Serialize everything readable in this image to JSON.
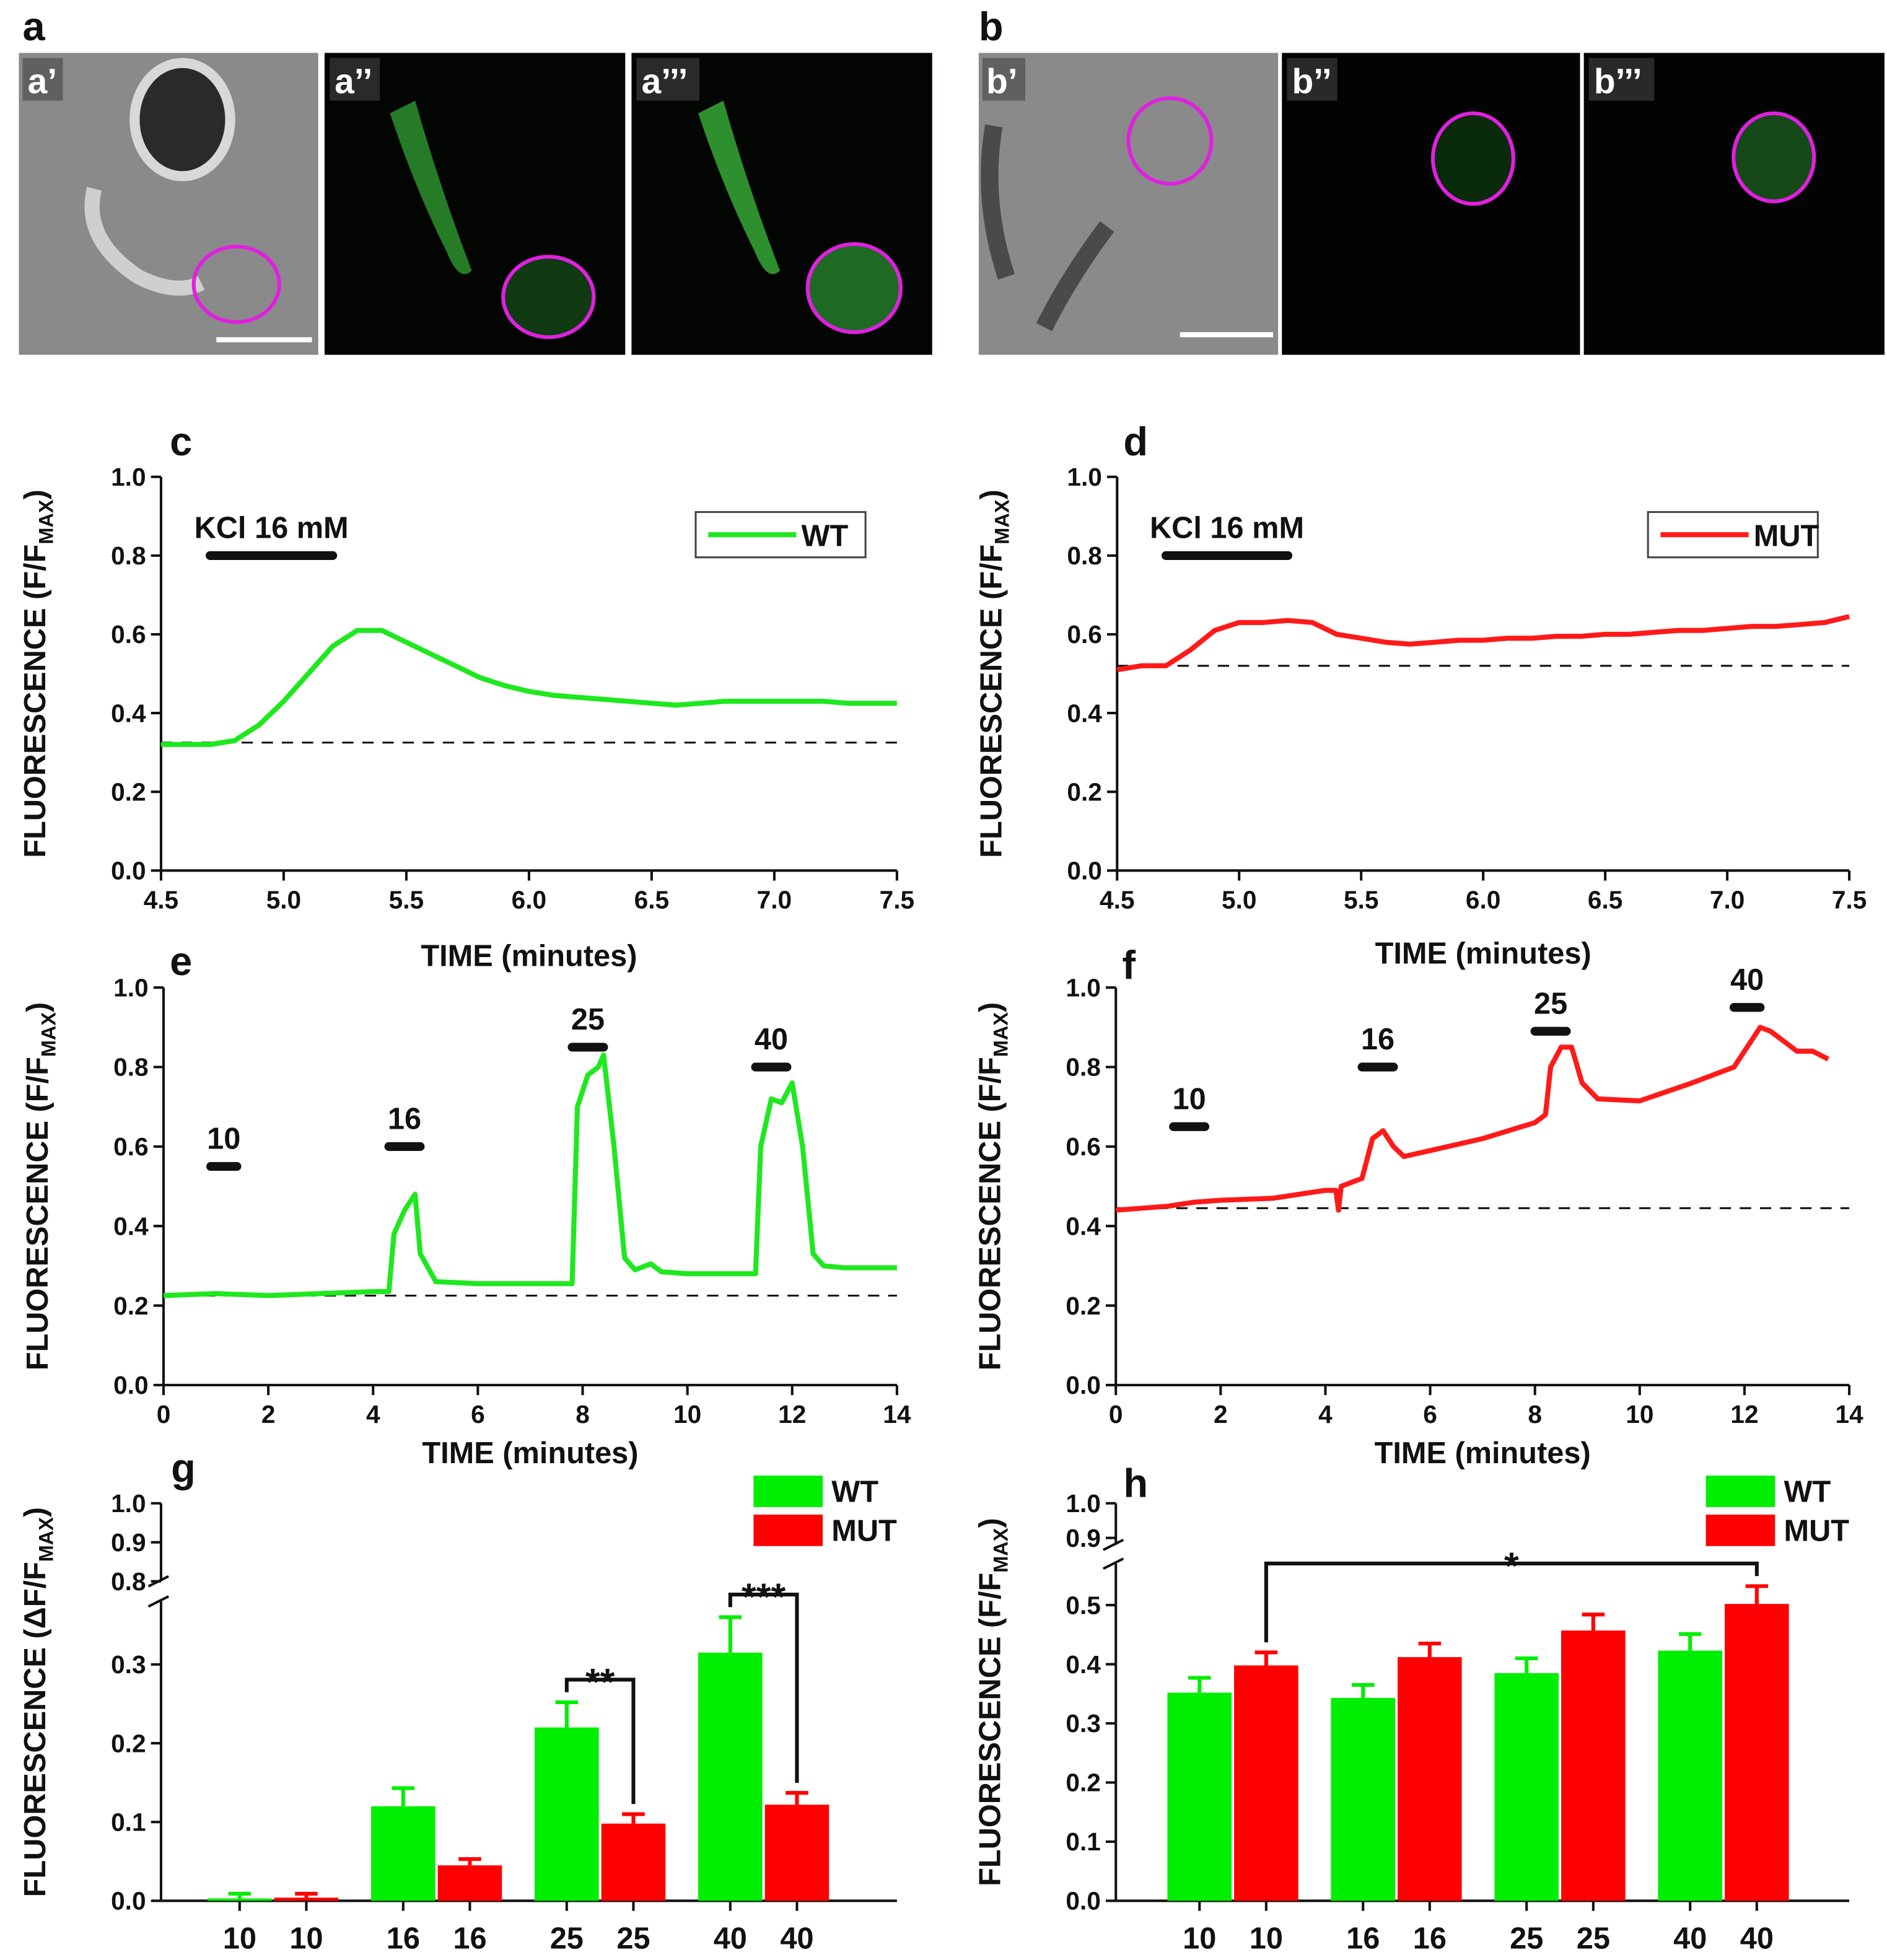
{
  "images": {
    "a": {
      "label": "a",
      "frames": [
        "a’",
        "a’’",
        "a’’’"
      ]
    },
    "b": {
      "label": "b",
      "frames": [
        "b’",
        "b’’",
        "b’’’"
      ]
    }
  },
  "chart_data": [
    {
      "type": "line",
      "label": "c",
      "xlabel": "TIME (minutes)",
      "ylabel": {
        "main": "FLUORESCENCE (F/F",
        "sub": "MAX",
        "end": ")"
      },
      "x": [
        4.5,
        4.6,
        4.7,
        4.8,
        4.9,
        5.0,
        5.1,
        5.2,
        5.3,
        5.4,
        5.5,
        5.6,
        5.7,
        5.8,
        5.9,
        6.0,
        6.1,
        6.2,
        6.3,
        6.4,
        6.5,
        6.6,
        6.7,
        6.8,
        6.9,
        7.0,
        7.1,
        7.2,
        7.3,
        7.4,
        7.5
      ],
      "series": [
        {
          "name": "WT",
          "color": "#1ee81e",
          "values": [
            0.32,
            0.32,
            0.32,
            0.33,
            0.37,
            0.43,
            0.5,
            0.57,
            0.61,
            0.61,
            0.58,
            0.55,
            0.52,
            0.49,
            0.47,
            0.455,
            0.445,
            0.44,
            0.435,
            0.43,
            0.425,
            0.42,
            0.425,
            0.43,
            0.43,
            0.43,
            0.43,
            0.43,
            0.425,
            0.425,
            0.425
          ]
        }
      ],
      "baseline": 0.325,
      "stimuli": [
        {
          "label": "KCl 16 mM",
          "start": 4.7,
          "end": 5.2,
          "y": 0.8
        }
      ],
      "xlim": [
        4.5,
        7.5
      ],
      "xticks": [
        4.5,
        {
          "value": 5,
          "label": "5.0"
        },
        5.5,
        {
          "value": 6,
          "label": "6.0"
        },
        6.5,
        {
          "value": 7,
          "label": "7.0"
        },
        7.5
      ],
      "ylim": [
        0,
        1
      ],
      "yticks": [
        {
          "value": 0,
          "label": "0.0"
        },
        0.2,
        0.4,
        0.6,
        0.8,
        {
          "value": 1,
          "label": "1.0"
        }
      ],
      "legend": "upper right"
    },
    {
      "type": "line",
      "label": "d",
      "xlabel": "TIME (minutes)",
      "ylabel": {
        "main": "FLUORESCENCE (F/F",
        "sub": "MAX",
        "end": ")"
      },
      "x": [
        4.5,
        4.6,
        4.7,
        4.8,
        4.9,
        5.0,
        5.1,
        5.2,
        5.3,
        5.4,
        5.5,
        5.6,
        5.7,
        5.8,
        5.9,
        6.0,
        6.1,
        6.2,
        6.3,
        6.4,
        6.5,
        6.6,
        6.7,
        6.8,
        6.9,
        7.0,
        7.1,
        7.2,
        7.3,
        7.4,
        7.5
      ],
      "series": [
        {
          "name": "MUT",
          "color": "#ff1a1a",
          "values": [
            0.51,
            0.52,
            0.52,
            0.56,
            0.61,
            0.63,
            0.63,
            0.635,
            0.63,
            0.6,
            0.59,
            0.58,
            0.575,
            0.58,
            0.585,
            0.585,
            0.59,
            0.59,
            0.595,
            0.595,
            0.6,
            0.6,
            0.605,
            0.61,
            0.61,
            0.615,
            0.62,
            0.62,
            0.625,
            0.63,
            0.645
          ]
        }
      ],
      "baseline": 0.52,
      "stimuli": [
        {
          "label": "KCl 16 mM",
          "start": 4.7,
          "end": 5.2,
          "y": 0.8
        }
      ],
      "xlim": [
        4.5,
        7.5
      ],
      "xticks": [
        4.5,
        {
          "value": 5,
          "label": "5.0"
        },
        5.5,
        {
          "value": 6,
          "label": "6.0"
        },
        6.5,
        {
          "value": 7,
          "label": "7.0"
        },
        7.5
      ],
      "ylim": [
        0,
        1
      ],
      "yticks": [
        {
          "value": 0,
          "label": "0.0"
        },
        0.2,
        0.4,
        0.6,
        0.8,
        {
          "value": 1,
          "label": "1.0"
        }
      ],
      "legend": "upper right"
    },
    {
      "type": "line",
      "label": "e",
      "xlabel": "TIME (minutes)",
      "ylabel": {
        "main": "FLUORESCENCE (F/F",
        "sub": "MAX",
        "end": ")"
      },
      "x": [
        0,
        1,
        2,
        3,
        4,
        4.3,
        4.4,
        4.6,
        4.8,
        4.9,
        5.2,
        6,
        7,
        7.8,
        7.9,
        8.1,
        8.3,
        8.4,
        8.6,
        8.8,
        9,
        9.3,
        9.5,
        10,
        11,
        11.3,
        11.4,
        11.6,
        11.8,
        12,
        12.2,
        12.4,
        12.6,
        13,
        14
      ],
      "series": [
        {
          "name": "WT",
          "color": "#1ee81e",
          "values": [
            0.225,
            0.23,
            0.225,
            0.23,
            0.235,
            0.235,
            0.38,
            0.44,
            0.48,
            0.33,
            0.26,
            0.255,
            0.255,
            0.255,
            0.7,
            0.78,
            0.8,
            0.83,
            0.6,
            0.32,
            0.29,
            0.305,
            0.285,
            0.28,
            0.28,
            0.28,
            0.6,
            0.72,
            0.71,
            0.76,
            0.6,
            0.33,
            0.3,
            0.295,
            0.295
          ]
        }
      ],
      "baseline": 0.225,
      "stimuli": [
        {
          "label": "10",
          "start": 0.9,
          "end": 1.4,
          "y": 0.55
        },
        {
          "label": "16",
          "start": 4.3,
          "end": 4.9,
          "y": 0.6
        },
        {
          "label": "25",
          "start": 7.8,
          "end": 8.4,
          "y": 0.85
        },
        {
          "label": "40",
          "start": 11.3,
          "end": 11.9,
          "y": 0.8
        }
      ],
      "xlim": [
        0,
        14
      ],
      "xticks": [
        0,
        2,
        4,
        6,
        8,
        10,
        12,
        14
      ],
      "ylim": [
        0,
        1
      ],
      "yticks": [
        {
          "value": 0,
          "label": "0.0"
        },
        0.2,
        0.4,
        0.6,
        0.8,
        {
          "value": 1,
          "label": "1.0"
        }
      ]
    },
    {
      "type": "line",
      "label": "f",
      "xlabel": "TIME (minutes)",
      "ylabel": {
        "main": "FLUORESCENCE (F/F",
        "sub": "MAX",
        "end": ")"
      },
      "x": [
        0,
        1,
        1.5,
        2,
        3,
        4,
        4.2,
        4.25,
        4.3,
        4.7,
        4.9,
        5.1,
        5.3,
        5.5,
        6,
        7,
        8,
        8.2,
        8.3,
        8.5,
        8.7,
        8.9,
        9.2,
        10,
        11,
        11.8,
        12,
        12.3,
        12.5,
        12.8,
        13,
        13.3,
        13.6
      ],
      "series": [
        {
          "name": "MUT",
          "color": "#ff1a1a",
          "values": [
            0.44,
            0.45,
            0.46,
            0.465,
            0.47,
            0.49,
            0.49,
            0.44,
            0.5,
            0.52,
            0.62,
            0.64,
            0.6,
            0.575,
            0.59,
            0.62,
            0.66,
            0.68,
            0.8,
            0.85,
            0.85,
            0.76,
            0.72,
            0.715,
            0.76,
            0.8,
            0.84,
            0.9,
            0.89,
            0.86,
            0.84,
            0.84,
            0.82
          ]
        }
      ],
      "baseline": 0.445,
      "stimuli": [
        {
          "label": "10",
          "start": 1.1,
          "end": 1.7,
          "y": 0.65
        },
        {
          "label": "16",
          "start": 4.7,
          "end": 5.3,
          "y": 0.8
        },
        {
          "label": "25",
          "start": 8.0,
          "end": 8.6,
          "y": 0.89
        },
        {
          "label": "40",
          "start": 11.8,
          "end": 12.3,
          "y": 0.95
        }
      ],
      "xlim": [
        0,
        14
      ],
      "xticks": [
        0,
        2,
        4,
        6,
        8,
        10,
        12,
        14
      ],
      "ylim": [
        0,
        1
      ],
      "yticks": [
        {
          "value": 0,
          "label": "0.0"
        },
        0.2,
        0.4,
        0.6,
        0.8,
        {
          "value": 1,
          "label": "1.0"
        }
      ]
    },
    {
      "type": "bar",
      "label": "g",
      "ylabel": {
        "main": "FLUORESCENCE (ΔF/F",
        "sub": "MAX",
        "end": ")"
      },
      "categories": [
        "10",
        "16",
        "25",
        "40"
      ],
      "series": [
        {
          "name": "WT",
          "color": "#00ee00",
          "values": [
            0.003,
            0.12,
            0.22,
            0.315
          ],
          "errors": [
            0.006,
            0.023,
            0.032,
            0.045
          ]
        },
        {
          "name": "MUT",
          "color": "#ff0000",
          "values": [
            0.004,
            0.045,
            0.098,
            0.122
          ],
          "errors": [
            0.005,
            0.008,
            0.012,
            0.015
          ]
        }
      ],
      "significance": [
        {
          "label": "**",
          "from": [
            0,
            2
          ],
          "to": [
            1,
            2
          ]
        },
        {
          "label": "***",
          "from": [
            0,
            3
          ],
          "to": [
            1,
            3
          ]
        }
      ],
      "ylim": [
        0,
        0.38
      ],
      "yticks": [
        {
          "value": 0,
          "label": "0.0"
        },
        0.1,
        0.2,
        0.3
      ],
      "ylim_upper": [
        0.8,
        1
      ],
      "yticks_upper": [
        0.8,
        0.9,
        {
          "value": 1,
          "label": "1.0"
        }
      ],
      "legend": "upper right"
    },
    {
      "type": "bar",
      "label": "h",
      "ylabel": {
        "main": "FLUORESCENCE (F/F",
        "sub": "MAX",
        "end": ")"
      },
      "categories": [
        "10",
        "16",
        "25",
        "40"
      ],
      "series": [
        {
          "name": "WT",
          "color": "#00ee00",
          "values": [
            0.352,
            0.343,
            0.385,
            0.423
          ],
          "errors": [
            0.025,
            0.022,
            0.025,
            0.028
          ]
        },
        {
          "name": "MUT",
          "color": "#ff0000",
          "values": [
            0.398,
            0.412,
            0.457,
            0.502
          ],
          "errors": [
            0.022,
            0.023,
            0.027,
            0.03
          ]
        }
      ],
      "significance": [
        {
          "label": "*",
          "from": [
            1,
            0
          ],
          "to": [
            1,
            3
          ]
        }
      ],
      "ylim": [
        0,
        0.57
      ],
      "yticks": [
        {
          "value": 0,
          "label": "0.0"
        },
        0.1,
        0.2,
        0.3,
        0.4,
        0.5
      ],
      "ylim_upper": [
        0.88,
        1
      ],
      "yticks_upper": [
        0.9,
        {
          "value": 1,
          "label": "1.0"
        }
      ],
      "legend": "upper right"
    }
  ]
}
